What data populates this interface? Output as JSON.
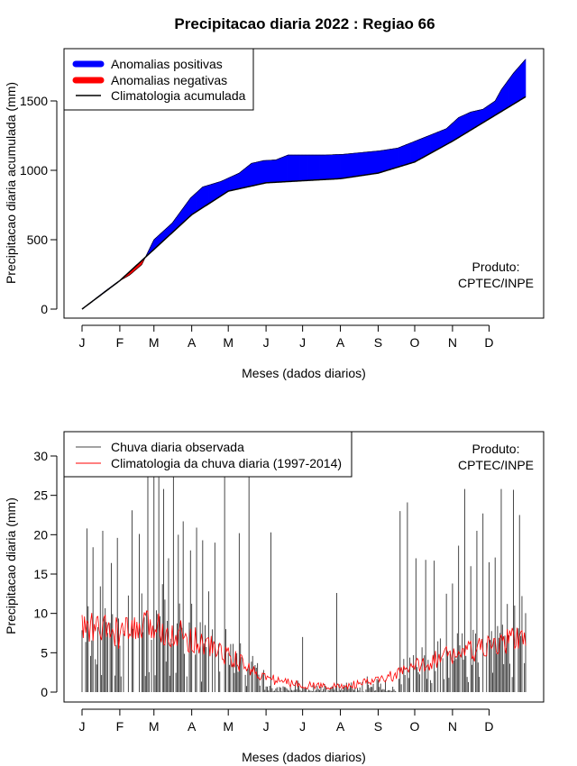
{
  "title": "Precipitacao diaria 2022 : Regiao 66",
  "months": [
    "J",
    "F",
    "M",
    "A",
    "M",
    "J",
    "J",
    "A",
    "S",
    "O",
    "N",
    "D"
  ],
  "colors": {
    "positive": "#0000ff",
    "negative": "#ff0000",
    "climatology": "#000000",
    "observed": "#333333",
    "daily_clim": "#ff0000"
  },
  "chart_data": [
    {
      "type": "area",
      "title": "Precipitacao diaria 2022 : Regiao 66",
      "xlabel": "Meses (dados diarios)",
      "ylabel": "Precipitacao diaria acumulada (mm)",
      "xlim": [
        1,
        365
      ],
      "ylim": [
        0,
        1800
      ],
      "yticks": [
        0,
        500,
        1000,
        1500
      ],
      "legend": [
        "Anomalias positivas",
        "Anomalias negativas",
        "Climatologia acumulada"
      ],
      "legend_position": "top-left",
      "annotation": [
        "Produto:",
        "CPTEC/INPE"
      ],
      "climatology_anchors": {
        "day": [
          1,
          32,
          60,
          91,
          121,
          152,
          182,
          213,
          244,
          274,
          305,
          335,
          365
        ],
        "value": [
          0,
          205,
          430,
          680,
          850,
          910,
          925,
          940,
          980,
          1060,
          1210,
          1370,
          1530
        ]
      },
      "observed_anchors": {
        "day": [
          1,
          20,
          30,
          40,
          50,
          55,
          60,
          75,
          90,
          100,
          115,
          130,
          140,
          150,
          160,
          170,
          200,
          215,
          245,
          260,
          280,
          300,
          310,
          320,
          330,
          340,
          345,
          355,
          365
        ],
        "value": [
          0,
          130,
          195,
          245,
          320,
          410,
          500,
          620,
          800,
          880,
          920,
          980,
          1050,
          1070,
          1075,
          1110,
          1110,
          1115,
          1140,
          1160,
          1230,
          1300,
          1380,
          1420,
          1440,
          1500,
          1580,
          1700,
          1800
        ]
      }
    },
    {
      "type": "line",
      "xlabel": "Meses (dados diarios)",
      "ylabel": "Precipitacao diaria (mm)",
      "xlim": [
        1,
        365
      ],
      "ylim": [
        0,
        30
      ],
      "yticks": [
        0,
        5,
        10,
        15,
        20,
        25,
        30
      ],
      "legend": [
        "Chuva diaria observada",
        "Climatologia da chuva diaria (1997-2014)"
      ],
      "legend_position": "top-left",
      "annotation": [
        "Produto:",
        "CPTEC/INPE"
      ],
      "series": [
        {
          "name": "Chuva diaria observada",
          "style": "vertical-bars",
          "peaks": {
            "day": [
              5,
              10,
              18,
              25,
              30,
              42,
              48,
              55,
              60,
              64,
              68,
              72,
              76,
              80,
              84,
              90,
              95,
              100,
              105,
              110,
              118,
              130,
              138,
              156,
              182,
              210,
              262,
              268,
              275,
              283,
              290,
              300,
              305,
              310,
              315,
              320,
              325,
              330,
              335,
              340,
              345,
              350,
              355,
              360,
              362
            ],
            "value": [
              20.8,
              18.4,
              20.5,
              16.4,
              19.6,
              23.1,
              20.1,
              27.5,
              27.4,
              27.3,
              25.8,
              17.0,
              27.4,
              20.0,
              21.7,
              18.0,
              20.9,
              19.3,
              12.8,
              19.0,
              27.4,
              20.2,
              27.4,
              20.3,
              7.0,
              12.6,
              23.0,
              24.1,
              17.0,
              16.8,
              16.7,
              12.5,
              13.8,
              18.6,
              25.8,
              16.0,
              20.5,
              22.7,
              16.5,
              17.1,
              25.8,
              11.2,
              25.7,
              22.5,
              12.2
            ]
          }
        },
        {
          "name": "Climatologia da chuva diaria (1997-2014)",
          "anchors": {
            "day": [
              1,
              15,
              32,
              46,
              60,
              75,
              91,
              106,
              121,
              136,
              152,
              167,
              182,
              197,
              213,
              228,
              244,
              259,
              274,
              289,
              305,
              320,
              335,
              350,
              365
            ],
            "value": [
              8.2,
              8.0,
              7.4,
              7.8,
              8.5,
              7.6,
              6.8,
              5.8,
              4.6,
              3.2,
              1.8,
              1.3,
              0.9,
              0.8,
              0.7,
              1.0,
              1.5,
              2.2,
              3.2,
              4.1,
              4.8,
              5.2,
              5.6,
              6.4,
              7.4
            ]
          }
        }
      ]
    }
  ]
}
